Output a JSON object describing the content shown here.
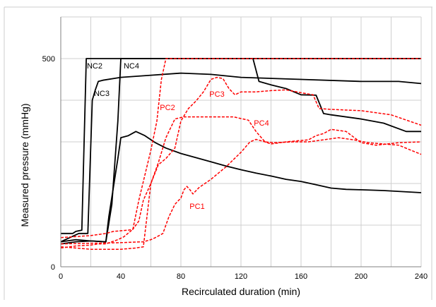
{
  "chart_data": {
    "type": "line",
    "xlabel": "Recirculated duration (min)",
    "ylabel": "Measured pressure (mmHg)",
    "xlim": [
      0,
      240
    ],
    "ylim": [
      0,
      500
    ],
    "x_ticks": [
      "0",
      "40",
      "80",
      "120",
      "160",
      "200",
      "240"
    ],
    "y_ticks": [
      "0",
      "500"
    ],
    "grid": true,
    "series": [
      {
        "name": "NC2",
        "color": "#000000",
        "dash": "solid",
        "points": [
          [
            0,
            80
          ],
          [
            8,
            80
          ],
          [
            10,
            85
          ],
          [
            14,
            88
          ],
          [
            17,
            500
          ],
          [
            240,
            500
          ]
        ]
      },
      {
        "name": "NC4",
        "color": "#000000",
        "dash": "solid",
        "points": [
          [
            0,
            55
          ],
          [
            10,
            60
          ],
          [
            20,
            62
          ],
          [
            30,
            60
          ],
          [
            34,
            150
          ],
          [
            38,
            350
          ],
          [
            40,
            500
          ],
          [
            240,
            500
          ]
        ]
      },
      {
        "name": "NC3",
        "color": "#000000",
        "dash": "solid",
        "points": [
          [
            0,
            60
          ],
          [
            12,
            80
          ],
          [
            18,
            80
          ],
          [
            21,
            400
          ],
          [
            23,
            425
          ],
          [
            25,
            445
          ],
          [
            28,
            448
          ],
          [
            40,
            455
          ],
          [
            60,
            460
          ],
          [
            80,
            465
          ],
          [
            100,
            462
          ],
          [
            120,
            455
          ],
          [
            160,
            450
          ],
          [
            200,
            445
          ],
          [
            225,
            445
          ],
          [
            240,
            440
          ]
        ]
      },
      {
        "name": "",
        "color": "#000000",
        "dash": "solid",
        "points": [
          [
            0,
            60
          ],
          [
            10,
            65
          ],
          [
            20,
            62
          ],
          [
            30,
            60
          ],
          [
            32,
            120
          ],
          [
            38,
            260
          ],
          [
            40,
            310
          ],
          [
            45,
            315
          ],
          [
            50,
            325
          ],
          [
            56,
            315
          ],
          [
            63,
            298
          ],
          [
            70,
            285
          ],
          [
            80,
            272
          ],
          [
            90,
            262
          ],
          [
            100,
            252
          ],
          [
            110,
            242
          ],
          [
            120,
            233
          ],
          [
            130,
            225
          ],
          [
            140,
            218
          ],
          [
            150,
            210
          ],
          [
            160,
            205
          ],
          [
            170,
            197
          ],
          [
            180,
            189
          ],
          [
            190,
            186
          ],
          [
            200,
            185
          ],
          [
            215,
            183
          ],
          [
            240,
            178
          ]
        ]
      },
      {
        "name": "",
        "color": "#000000",
        "dash": "solid",
        "points": [
          [
            128,
            500
          ],
          [
            132,
            445
          ],
          [
            140,
            437
          ],
          [
            150,
            428
          ],
          [
            160,
            413
          ],
          [
            170,
            412
          ],
          [
            175,
            368
          ],
          [
            180,
            365
          ],
          [
            200,
            355
          ],
          [
            215,
            345
          ],
          [
            230,
            325
          ],
          [
            240,
            325
          ]
        ]
      },
      {
        "name": "PC2",
        "color": "#ff0000",
        "dash": "dashed",
        "points": [
          [
            0,
            45
          ],
          [
            10,
            50
          ],
          [
            20,
            52
          ],
          [
            25,
            55
          ],
          [
            30,
            55
          ],
          [
            38,
            65
          ],
          [
            42,
            72
          ],
          [
            48,
            90
          ],
          [
            52,
            160
          ],
          [
            56,
            220
          ],
          [
            60,
            280
          ],
          [
            64,
            350
          ],
          [
            67,
            450
          ],
          [
            70,
            500
          ],
          [
            240,
            500
          ]
        ]
      },
      {
        "name": "PC3",
        "color": "#ff0000",
        "dash": "dashed",
        "points": [
          [
            0,
            70
          ],
          [
            20,
            75
          ],
          [
            30,
            80
          ],
          [
            35,
            85
          ],
          [
            45,
            88
          ],
          [
            48,
            90
          ],
          [
            52,
            110
          ],
          [
            55,
            160
          ],
          [
            60,
            200
          ],
          [
            65,
            245
          ],
          [
            70,
            260
          ],
          [
            76,
            285
          ],
          [
            80,
            350
          ],
          [
            85,
            380
          ],
          [
            90,
            398
          ],
          [
            95,
            420
          ],
          [
            100,
            450
          ],
          [
            104,
            455
          ],
          [
            108,
            452
          ],
          [
            112,
            428
          ],
          [
            116,
            413
          ],
          [
            120,
            420
          ],
          [
            130,
            420
          ],
          [
            140,
            423
          ],
          [
            150,
            425
          ],
          [
            160,
            418
          ],
          [
            168,
            413
          ],
          [
            172,
            380
          ],
          [
            180,
            378
          ],
          [
            200,
            375
          ],
          [
            220,
            365
          ],
          [
            240,
            340
          ]
        ]
      },
      {
        "name": "PC4",
        "color": "#ff0000",
        "dash": "dashed",
        "points": [
          [
            0,
            48
          ],
          [
            20,
            42
          ],
          [
            40,
            42
          ],
          [
            50,
            45
          ],
          [
            55,
            48
          ],
          [
            60,
            200
          ],
          [
            65,
            250
          ],
          [
            70,
            310
          ],
          [
            76,
            355
          ],
          [
            82,
            360
          ],
          [
            90,
            360
          ],
          [
            100,
            360
          ],
          [
            115,
            360
          ],
          [
            125,
            352
          ],
          [
            130,
            325
          ],
          [
            136,
            300
          ],
          [
            142,
            298
          ],
          [
            155,
            300
          ],
          [
            165,
            300
          ],
          [
            175,
            305
          ],
          [
            185,
            310
          ],
          [
            195,
            305
          ],
          [
            205,
            298
          ],
          [
            215,
            295
          ],
          [
            225,
            292
          ],
          [
            240,
            270
          ]
        ]
      },
      {
        "name": "PC1",
        "color": "#ff0000",
        "dash": "dashed",
        "points": [
          [
            0,
            55
          ],
          [
            40,
            58
          ],
          [
            55,
            60
          ],
          [
            60,
            65
          ],
          [
            63,
            70
          ],
          [
            68,
            80
          ],
          [
            72,
            120
          ],
          [
            76,
            150
          ],
          [
            80,
            165
          ],
          [
            82,
            185
          ],
          [
            84,
            193
          ],
          [
            86,
            185
          ],
          [
            88,
            175
          ],
          [
            92,
            190
          ],
          [
            100,
            210
          ],
          [
            110,
            240
          ],
          [
            120,
            275
          ],
          [
            126,
            300
          ],
          [
            130,
            306
          ],
          [
            136,
            300
          ],
          [
            140,
            295
          ],
          [
            150,
            300
          ],
          [
            165,
            305
          ],
          [
            170,
            315
          ],
          [
            175,
            320
          ],
          [
            180,
            330
          ],
          [
            190,
            325
          ],
          [
            200,
            298
          ],
          [
            210,
            292
          ],
          [
            225,
            298
          ],
          [
            240,
            300
          ]
        ]
      }
    ]
  }
}
